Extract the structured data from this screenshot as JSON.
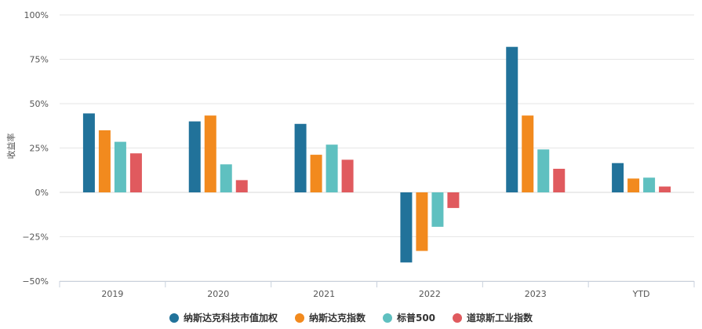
{
  "chart_data": {
    "type": "bar",
    "ylabel": "收益率",
    "ylim": [
      -50,
      100
    ],
    "y_ticks": [
      100,
      75,
      50,
      25,
      0,
      -25,
      -50
    ],
    "y_tick_labels": [
      "100%",
      "75%",
      "50%",
      "25%",
      "0%",
      "−25%",
      "−50%"
    ],
    "categories": [
      "2019",
      "2020",
      "2021",
      "2022",
      "2023",
      "YTD"
    ],
    "grid": true,
    "legend_position": "bottom",
    "series": [
      {
        "name": "纳斯达克科技市值加权",
        "color": "#21729a",
        "values": [
          44.5,
          40.0,
          38.6,
          -39.5,
          82.0,
          16.5
        ]
      },
      {
        "name": "纳斯达克指数",
        "color": "#f28a1e",
        "values": [
          35.0,
          43.3,
          21.2,
          -33.0,
          43.3,
          7.8
        ]
      },
      {
        "name": "标普500",
        "color": "#5fc0c0",
        "values": [
          28.5,
          15.8,
          26.9,
          -19.4,
          24.2,
          8.3
        ]
      },
      {
        "name": "道琼斯工业指数",
        "color": "#e05a5e",
        "values": [
          22.0,
          6.9,
          18.4,
          -8.8,
          13.3,
          3.3
        ]
      }
    ]
  }
}
